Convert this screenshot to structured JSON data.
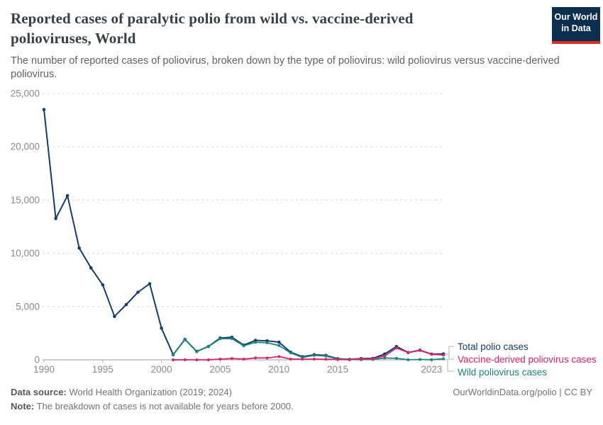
{
  "header": {
    "title": "Reported cases of paralytic polio from wild vs. vaccine-derived polioviruses, World",
    "subtitle": "The number of reported cases of poliovirus, broken down by the type of poliovirus: wild poliovirus versus vaccine-derived poliovirus.",
    "logo": {
      "line1": "Our World",
      "line2": "in Data"
    }
  },
  "chart_data": {
    "type": "line",
    "title": "Reported cases of paralytic polio from wild vs. vaccine-derived polioviruses, World",
    "xlabel": "",
    "ylabel": "",
    "xlim": [
      1990,
      2024
    ],
    "ylim": [
      0,
      25000
    ],
    "grid": "horizontal-dashed",
    "legend_position": "right-of-line-ends",
    "xticks": [
      1990,
      1995,
      2000,
      2005,
      2010,
      2015,
      2023
    ],
    "yticks": [
      0,
      5000,
      10000,
      15000,
      20000,
      25000
    ],
    "ytick_labels": [
      "0",
      "5,000",
      "10,000",
      "15,000",
      "20,000",
      "25,000"
    ],
    "series": [
      {
        "name": "Total polio cases",
        "color": "#143d6b",
        "x": [
          1990,
          1991,
          1992,
          1993,
          1994,
          1995,
          1996,
          1997,
          1998,
          1999,
          2000,
          2001,
          2002,
          2003,
          2004,
          2005,
          2006,
          2007,
          2008,
          2009,
          2010,
          2011,
          2012,
          2013,
          2014,
          2015,
          2016,
          2017,
          2018,
          2019,
          2020,
          2021,
          2022,
          2023,
          2024
        ],
        "values": [
          23484,
          13266,
          15406,
          10487,
          8635,
          7035,
          4074,
          5185,
          6349,
          7141,
          2971,
          486,
          1923,
          786,
          1257,
          2045,
          2123,
          1384,
          1830,
          1779,
          1660,
          714,
          291,
          482,
          415,
          106,
          42,
          118,
          137,
          542,
          1253,
          688,
          905,
          539,
          549
        ]
      },
      {
        "name": "Vaccine-derived poliovirus cases",
        "color": "#d8246e",
        "x": [
          2001,
          2002,
          2003,
          2004,
          2005,
          2006,
          2007,
          2008,
          2009,
          2010,
          2011,
          2012,
          2013,
          2014,
          2015,
          2016,
          2017,
          2018,
          2019,
          2020,
          2021,
          2022,
          2023,
          2024
        ],
        "values": [
          3,
          5,
          2,
          2,
          66,
          126,
          69,
          178,
          175,
          308,
          64,
          68,
          66,
          56,
          32,
          5,
          96,
          104,
          366,
          1113,
          682,
          875,
          527,
          450
        ]
      },
      {
        "name": "Wild poliovirus cases",
        "color": "#178779",
        "x": [
          2001,
          2002,
          2003,
          2004,
          2005,
          2006,
          2007,
          2008,
          2009,
          2010,
          2011,
          2012,
          2013,
          2014,
          2015,
          2016,
          2017,
          2018,
          2019,
          2020,
          2021,
          2022,
          2023,
          2024
        ],
        "values": [
          483,
          1918,
          784,
          1255,
          1979,
          1997,
          1315,
          1652,
          1604,
          1352,
          650,
          223,
          416,
          359,
          74,
          37,
          22,
          33,
          176,
          140,
          6,
          30,
          12,
          99
        ]
      }
    ],
    "note": "The breakdown of cases is not available for years before 2000."
  },
  "footer": {
    "data_source_label": "Data source:",
    "data_source_text": " World Health Organization (2019; 2024)",
    "note_label": "Note:",
    "note_text": " The breakdown of cases is not available for years before 2000.",
    "link": "OurWorldinData.org/polio | CC BY"
  }
}
